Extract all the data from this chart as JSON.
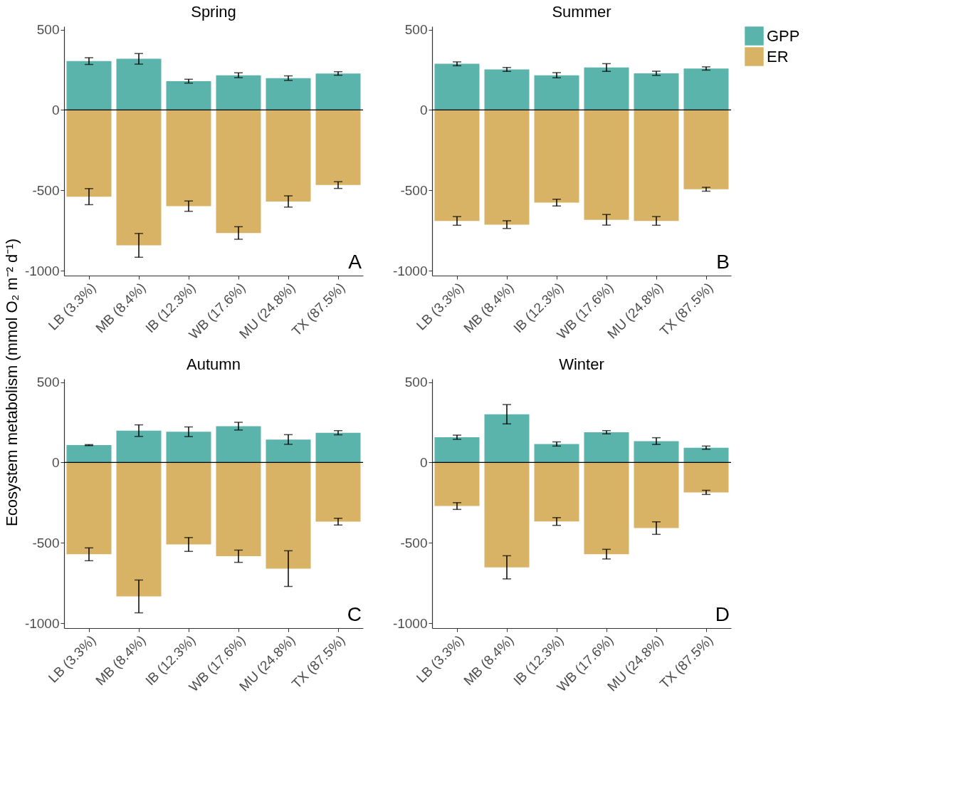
{
  "chart_data": [
    {
      "type": "bar",
      "stacked": true,
      "title": "Spring",
      "ylabel": "Ecosystem metabolism (mmol O₂ m⁻² d⁻¹)",
      "annotations": [
        "A"
      ],
      "categories": [
        "LB (3.3%)",
        "MB (8.4%)",
        "IB (12.3%)",
        "WB (17.6%)",
        "MU (24.8%)",
        "TX (87.5%)"
      ],
      "series": [
        {
          "name": "GPP",
          "color": "#5bb4ab",
          "values": [
            304,
            318,
            179,
            216,
            198,
            227
          ],
          "errors": [
            21,
            33,
            12,
            15,
            14,
            11
          ]
        },
        {
          "name": "ER",
          "color": "#d8b365",
          "values": [
            -539,
            -842,
            -598,
            -765,
            -569,
            -467
          ],
          "errors": [
            50,
            74,
            32,
            39,
            35,
            21
          ]
        }
      ],
      "ylim": [
        -1030,
        520
      ],
      "yticks": [
        -1000,
        -500,
        0,
        500
      ],
      "ref_lines": [
        {
          "axis": "y",
          "value": 0
        }
      ],
      "grid": false,
      "legend": "right"
    },
    {
      "type": "bar",
      "stacked": true,
      "title": "Summer",
      "annotations": [
        "B"
      ],
      "categories": [
        "LB (3.3%)",
        "MB (8.4%)",
        "IB (12.3%)",
        "WB (17.6%)",
        "MU (24.8%)",
        "TX (87.5%)"
      ],
      "series": [
        {
          "name": "GPP",
          "color": "#5bb4ab",
          "values": [
            287,
            252,
            216,
            264,
            228,
            258
          ],
          "errors": [
            12,
            12,
            16,
            24,
            13,
            10
          ]
        },
        {
          "name": "ER",
          "color": "#d8b365",
          "values": [
            -690,
            -713,
            -576,
            -683,
            -690,
            -493
          ],
          "errors": [
            27,
            24,
            21,
            33,
            27,
            12
          ]
        }
      ],
      "ylim": [
        -1030,
        520
      ],
      "yticks": [
        -1000,
        -500,
        0,
        500
      ],
      "ref_lines": [
        {
          "axis": "y",
          "value": 0
        }
      ],
      "grid": false,
      "legend": "right"
    },
    {
      "type": "bar",
      "stacked": true,
      "title": "Autumn",
      "annotations": [
        "C"
      ],
      "categories": [
        "LB (3.3%)",
        "MB (8.4%)",
        "IB (12.3%)",
        "WB (17.6%)",
        "MU (24.8%)",
        "TX (87.5%)"
      ],
      "series": [
        {
          "name": "GPP",
          "color": "#5bb4ab",
          "values": [
            108,
            198,
            191,
            226,
            143,
            185
          ],
          "errors": [
            3,
            36,
            30,
            24,
            30,
            13
          ]
        },
        {
          "name": "ER",
          "color": "#d8b365",
          "values": [
            -571,
            -833,
            -510,
            -583,
            -660,
            -368
          ],
          "errors": [
            40,
            102,
            43,
            38,
            111,
            21
          ]
        }
      ],
      "ylim": [
        -1030,
        520
      ],
      "yticks": [
        -1000,
        -500,
        0,
        500
      ],
      "ref_lines": [
        {
          "axis": "y",
          "value": 0
        }
      ],
      "grid": false,
      "legend": "right"
    },
    {
      "type": "bar",
      "stacked": true,
      "title": "Winter",
      "annotations": [
        "D"
      ],
      "categories": [
        "LB (3.3%)",
        "MB (8.4%)",
        "IB (12.3%)",
        "WB (17.6%)",
        "MU (24.8%)",
        "TX (87.5%)"
      ],
      "series": [
        {
          "name": "GPP",
          "color": "#5bb4ab",
          "values": [
            157,
            300,
            115,
            188,
            133,
            92
          ],
          "errors": [
            13,
            60,
            13,
            10,
            21,
            10
          ]
        },
        {
          "name": "ER",
          "color": "#d8b365",
          "values": [
            -271,
            -652,
            -367,
            -570,
            -408,
            -186
          ],
          "errors": [
            21,
            72,
            24,
            30,
            39,
            13
          ]
        }
      ],
      "ylim": [
        -1030,
        520
      ],
      "yticks": [
        -1000,
        -500,
        0,
        500
      ],
      "ref_lines": [
        {
          "axis": "y",
          "value": 0
        }
      ],
      "grid": false,
      "legend": "right"
    }
  ]
}
